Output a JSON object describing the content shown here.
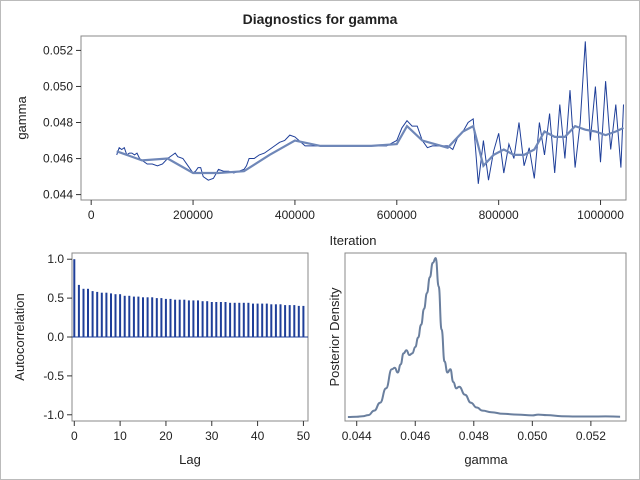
{
  "title": "Diagnostics for gamma",
  "colors": {
    "trace": "#1f3f99",
    "smooth": "#6f87b8",
    "acf": "#1f3f99",
    "density": "#6a7f9e"
  },
  "chart_data": [
    {
      "type": "line",
      "name": "trace",
      "xlabel": "Iteration",
      "ylabel": "gamma",
      "xlim": [
        -20000,
        1050000
      ],
      "ylim": [
        0.0437,
        0.0528
      ],
      "xticks": [
        0,
        200000,
        400000,
        600000,
        800000,
        1000000
      ],
      "xtick_labels": [
        "0",
        "200000",
        "400000",
        "600000",
        "800000",
        "1000000"
      ],
      "yticks": [
        0.044,
        0.046,
        0.048,
        0.05,
        0.052
      ],
      "ytick_labels": [
        "0.044",
        "0.046",
        "0.048",
        "0.050",
        "0.052"
      ],
      "x": [
        50000,
        55000,
        60000,
        65000,
        70000,
        75000,
        80000,
        85000,
        90000,
        95000,
        100000,
        110000,
        120000,
        130000,
        140000,
        150000,
        160000,
        165000,
        170000,
        180000,
        190000,
        195000,
        200000,
        205000,
        210000,
        215000,
        220000,
        230000,
        240000,
        250000,
        260000,
        270000,
        280000,
        290000,
        300000,
        305000,
        310000,
        320000,
        330000,
        340000,
        350000,
        360000,
        370000,
        380000,
        390000,
        400000,
        420000,
        440000,
        460000,
        480000,
        500000,
        520000,
        540000,
        560000,
        580000,
        600000,
        610000,
        620000,
        630000,
        640000,
        650000,
        660000,
        670000,
        680000,
        690000,
        700000,
        710000,
        720000,
        730000,
        740000,
        750000,
        760000,
        770000,
        780000,
        790000,
        800000,
        810000,
        820000,
        830000,
        840000,
        850000,
        860000,
        870000,
        880000,
        890000,
        900000,
        910000,
        920000,
        930000,
        940000,
        950000,
        960000,
        970000,
        980000,
        990000,
        1000000,
        1010000,
        1020000,
        1030000,
        1040000,
        1045000
      ],
      "values": [
        0.0462,
        0.0466,
        0.0465,
        0.0466,
        0.0462,
        0.0463,
        0.0463,
        0.0462,
        0.0463,
        0.046,
        0.0459,
        0.0457,
        0.0457,
        0.0456,
        0.0457,
        0.046,
        0.0462,
        0.0463,
        0.0461,
        0.046,
        0.0456,
        0.0454,
        0.0452,
        0.0453,
        0.0455,
        0.0455,
        0.045,
        0.0448,
        0.0449,
        0.0454,
        0.0453,
        0.0453,
        0.0452,
        0.0453,
        0.0454,
        0.0456,
        0.046,
        0.046,
        0.0462,
        0.0463,
        0.0465,
        0.0467,
        0.0469,
        0.047,
        0.0473,
        0.0472,
        0.0467,
        0.0467,
        0.0467,
        0.0467,
        0.0467,
        0.0467,
        0.0467,
        0.0467,
        0.0467,
        0.047,
        0.0477,
        0.0481,
        0.0478,
        0.0478,
        0.047,
        0.0466,
        0.0467,
        0.0467,
        0.0467,
        0.0467,
        0.0465,
        0.0472,
        0.0475,
        0.048,
        0.0482,
        0.0446,
        0.047,
        0.0448,
        0.0464,
        0.0474,
        0.0452,
        0.0468,
        0.046,
        0.048,
        0.0456,
        0.0466,
        0.0449,
        0.048,
        0.0462,
        0.0485,
        0.0452,
        0.049,
        0.046,
        0.0498,
        0.0455,
        0.048,
        0.0525,
        0.047,
        0.05,
        0.0458,
        0.0503,
        0.0465,
        0.049,
        0.0455,
        0.049
      ],
      "smooth_x": [
        50000,
        100000,
        150000,
        200000,
        250000,
        300000,
        350000,
        400000,
        450000,
        500000,
        550000,
        600000,
        620000,
        650000,
        700000,
        730000,
        750000,
        770000,
        790000,
        810000,
        830000,
        850000,
        870000,
        890000,
        910000,
        930000,
        950000,
        970000,
        990000,
        1010000,
        1030000,
        1045000
      ],
      "smooth_values": [
        0.0464,
        0.0459,
        0.046,
        0.0452,
        0.0452,
        0.0453,
        0.0462,
        0.047,
        0.0467,
        0.0467,
        0.0467,
        0.0468,
        0.0478,
        0.047,
        0.0466,
        0.0475,
        0.0478,
        0.0456,
        0.0462,
        0.0465,
        0.0462,
        0.0462,
        0.0465,
        0.0475,
        0.0472,
        0.0472,
        0.0478,
        0.0476,
        0.0475,
        0.0473,
        0.0475,
        0.0477
      ]
    },
    {
      "type": "bar",
      "name": "autocorrelation",
      "xlabel": "Lag",
      "ylabel": "Autocorrelation",
      "xlim": [
        -0.5,
        51
      ],
      "ylim": [
        -1.08,
        1.08
      ],
      "xticks": [
        0,
        10,
        20,
        30,
        40,
        50
      ],
      "xtick_labels": [
        "0",
        "10",
        "20",
        "30",
        "40",
        "50"
      ],
      "yticks": [
        -1.0,
        -0.5,
        0.0,
        0.5,
        1.0
      ],
      "ytick_labels": [
        "-1.0",
        "-0.5",
        "0.0",
        "0.5",
        "1.0"
      ],
      "lags": [
        0,
        1,
        2,
        3,
        4,
        5,
        6,
        7,
        8,
        9,
        10,
        11,
        12,
        13,
        14,
        15,
        16,
        17,
        18,
        19,
        20,
        21,
        22,
        23,
        24,
        25,
        26,
        27,
        28,
        29,
        30,
        31,
        32,
        33,
        34,
        35,
        36,
        37,
        38,
        39,
        40,
        41,
        42,
        43,
        44,
        45,
        46,
        47,
        48,
        49,
        50
      ],
      "values": [
        1.0,
        0.67,
        0.62,
        0.62,
        0.59,
        0.58,
        0.57,
        0.57,
        0.56,
        0.55,
        0.55,
        0.53,
        0.53,
        0.52,
        0.52,
        0.51,
        0.51,
        0.51,
        0.5,
        0.5,
        0.49,
        0.49,
        0.48,
        0.48,
        0.48,
        0.47,
        0.47,
        0.47,
        0.46,
        0.46,
        0.45,
        0.45,
        0.45,
        0.45,
        0.44,
        0.44,
        0.44,
        0.44,
        0.44,
        0.43,
        0.43,
        0.43,
        0.43,
        0.42,
        0.42,
        0.42,
        0.41,
        0.41,
        0.41,
        0.4,
        0.4
      ]
    },
    {
      "type": "line",
      "name": "posterior-density",
      "xlabel": "gamma",
      "ylabel": "Posterior Density",
      "xlim": [
        0.0436,
        0.0532
      ],
      "xticks": [
        0.044,
        0.046,
        0.048,
        0.05,
        0.052
      ],
      "xtick_labels": [
        "0.044",
        "0.046",
        "0.048",
        "0.050",
        "0.052"
      ],
      "x": [
        0.0437,
        0.044,
        0.0442,
        0.0444,
        0.0446,
        0.0448,
        0.045,
        0.0452,
        0.0453,
        0.0454,
        0.0455,
        0.0456,
        0.0457,
        0.0458,
        0.0459,
        0.046,
        0.0461,
        0.0462,
        0.0463,
        0.0464,
        0.0465,
        0.0466,
        0.0467,
        0.0468,
        0.0469,
        0.047,
        0.0471,
        0.0472,
        0.0473,
        0.0474,
        0.0475,
        0.0477,
        0.0479,
        0.0481,
        0.0483,
        0.0486,
        0.049,
        0.0495,
        0.05,
        0.0502,
        0.0505,
        0.051,
        0.0515,
        0.052,
        0.0525,
        0.053
      ],
      "values": [
        0.0,
        0.002,
        0.005,
        0.012,
        0.04,
        0.09,
        0.18,
        0.3,
        0.31,
        0.28,
        0.33,
        0.4,
        0.42,
        0.39,
        0.4,
        0.44,
        0.5,
        0.58,
        0.68,
        0.78,
        0.88,
        0.97,
        1.0,
        0.82,
        0.55,
        0.35,
        0.28,
        0.3,
        0.22,
        0.18,
        0.19,
        0.14,
        0.09,
        0.06,
        0.04,
        0.03,
        0.02,
        0.015,
        0.01,
        0.015,
        0.012,
        0.005,
        0.003,
        0.003,
        0.004,
        0.002
      ]
    }
  ]
}
